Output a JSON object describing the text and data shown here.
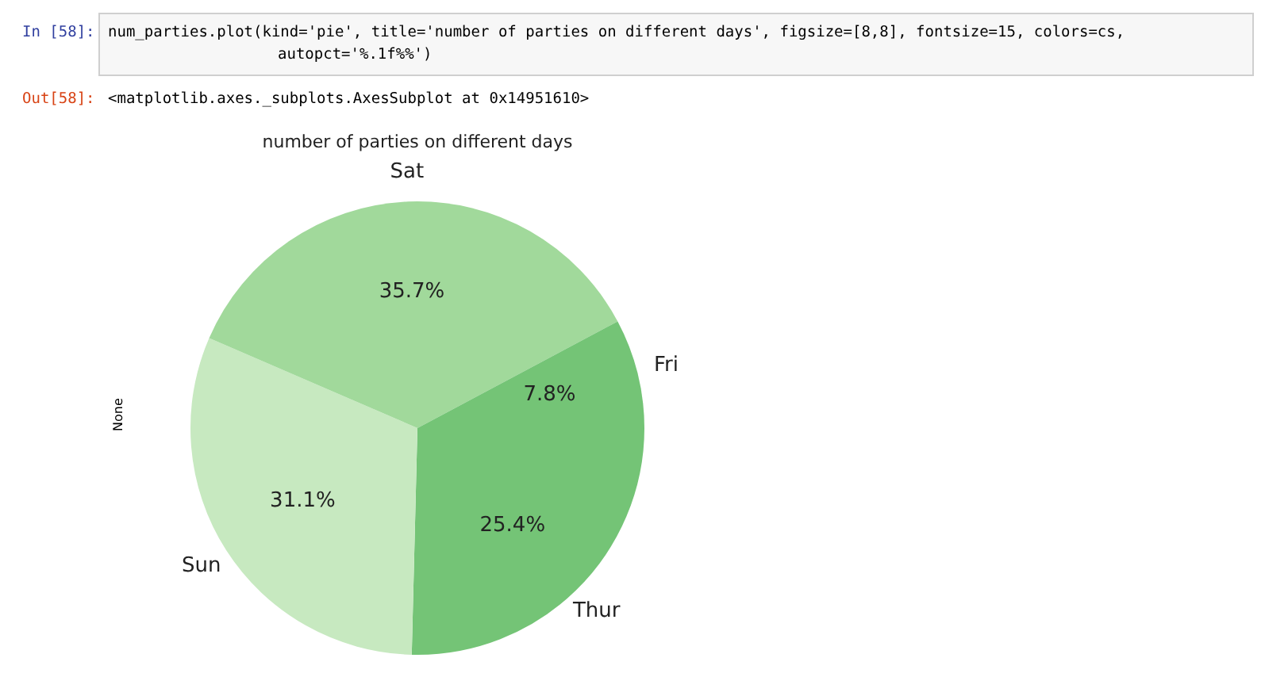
{
  "chart_data": {
    "type": "pie",
    "title": "number of parties on different days",
    "ylabel": "None",
    "categories": [
      "Thur",
      "Sun",
      "Sat",
      "Fri"
    ],
    "values": [
      25.4,
      31.1,
      35.7,
      7.8
    ],
    "colors": [
      "#74c476",
      "#c7e9c0",
      "#a1d99b",
      "#74c476"
    ],
    "value_labels": [
      "25.4%",
      "31.1%",
      "35.7%",
      "7.8%"
    ],
    "legend": false,
    "annotations": [
      "In [58]:",
      "num_parties.plot(kind='pie', title='number of parties on different days', figsize=[8,8], fontsize=15, colors=cs,",
      "autopct='%.1f%%')",
      "Out[58]:",
      "<matplotlib.axes._subplots.AxesSubplot at 0x14951610>"
    ]
  }
}
